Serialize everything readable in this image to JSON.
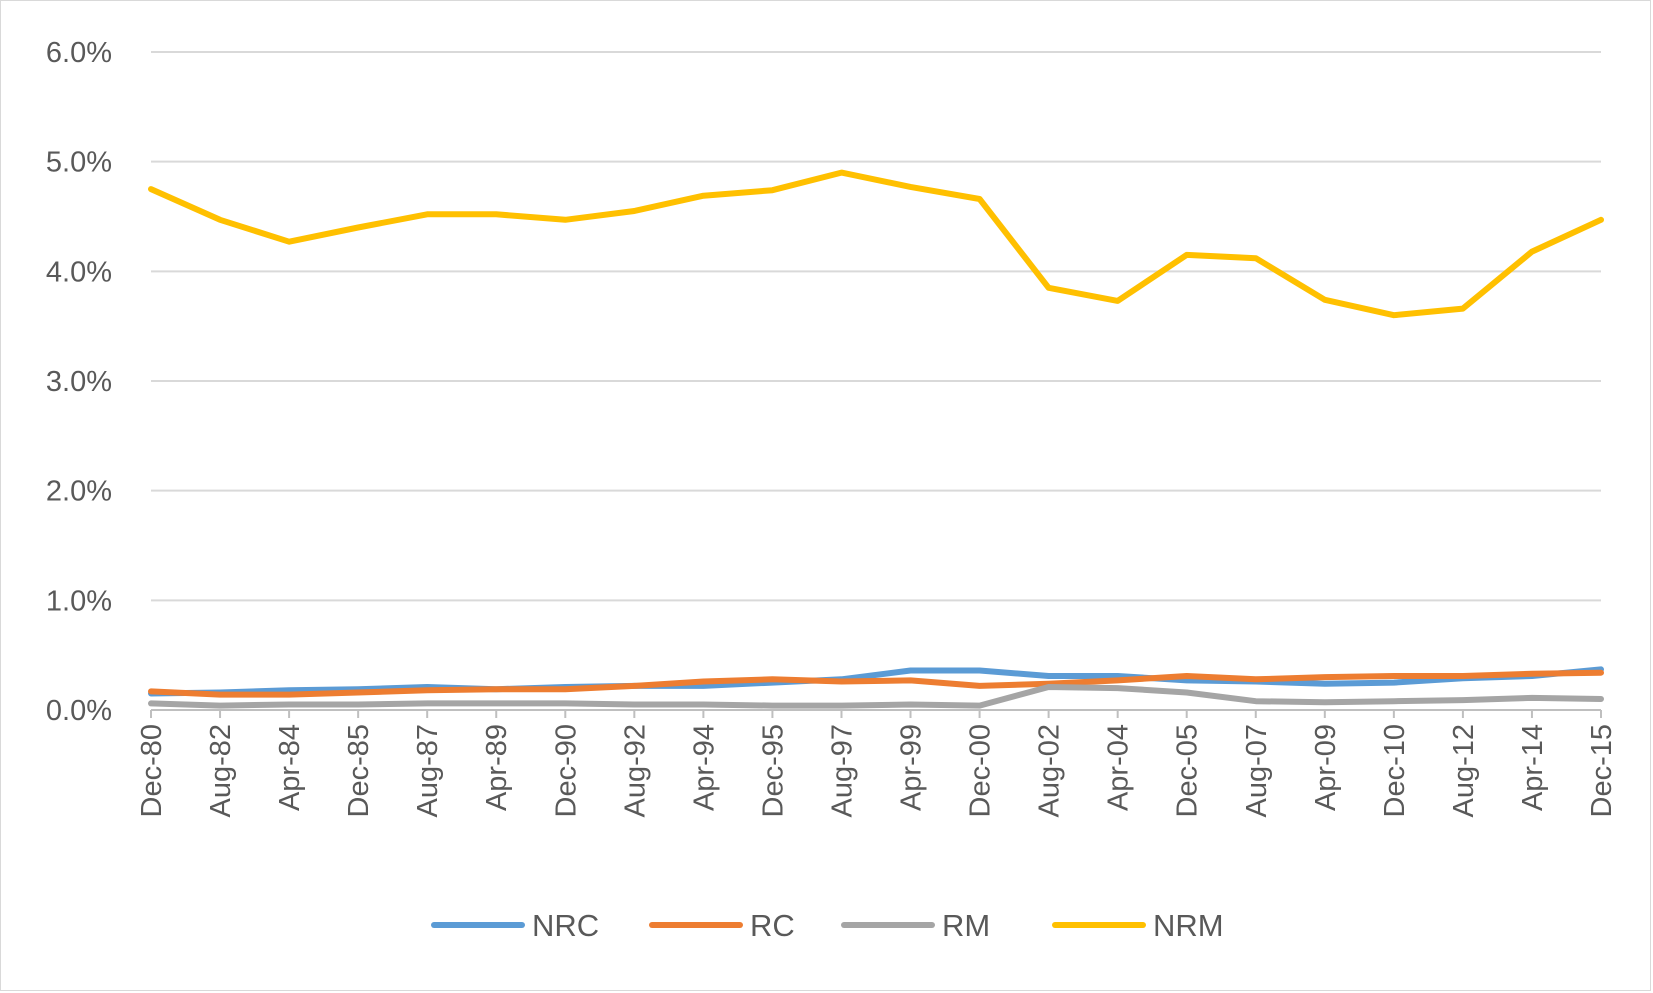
{
  "chart_data": {
    "type": "line",
    "title": "",
    "xlabel": "",
    "ylabel": "",
    "ylim": [
      0,
      0.06
    ],
    "yticks": [
      "0.0%",
      "1.0%",
      "2.0%",
      "3.0%",
      "4.0%",
      "5.0%",
      "6.0%"
    ],
    "xlim": [
      "1980-12",
      "2015-12"
    ],
    "xticks": [
      "Dec-80",
      "Aug-82",
      "Apr-84",
      "Dec-85",
      "Aug-87",
      "Apr-89",
      "Dec-90",
      "Aug-92",
      "Apr-94",
      "Dec-95",
      "Aug-97",
      "Apr-99",
      "Dec-00",
      "Aug-02",
      "Apr-04",
      "Dec-05",
      "Aug-07",
      "Apr-09",
      "Dec-10",
      "Aug-12",
      "Apr-14",
      "Dec-15"
    ],
    "grid": true,
    "legend": "bottom",
    "x": [
      "1980-12",
      "1982-08",
      "1984-04",
      "1985-12",
      "1987-08",
      "1989-04",
      "1990-12",
      "1992-08",
      "1994-04",
      "1995-12",
      "1997-08",
      "1999-04",
      "2000-12",
      "2002-08",
      "2004-04",
      "2005-12",
      "2007-08",
      "2009-04",
      "2010-12",
      "2012-08",
      "2014-04",
      "2015-12"
    ],
    "series": [
      {
        "name": "NRC",
        "color": "#5b9bd5",
        "values": [
          0.0015,
          0.0016,
          0.0018,
          0.0019,
          0.0021,
          0.0019,
          0.0021,
          0.0022,
          0.0022,
          0.0025,
          0.0028,
          0.0036,
          0.0036,
          0.0031,
          0.0031,
          0.0027,
          0.0026,
          0.0024,
          0.0025,
          0.0029,
          0.0031,
          0.0037
        ]
      },
      {
        "name": "RC",
        "color": "#ed7d31",
        "values": [
          0.0017,
          0.0014,
          0.0014,
          0.0016,
          0.0018,
          0.0019,
          0.0019,
          0.0022,
          0.0026,
          0.0028,
          0.0026,
          0.0027,
          0.0022,
          0.0024,
          0.0027,
          0.0031,
          0.0028,
          0.003,
          0.0031,
          0.0031,
          0.0033,
          0.0034
        ]
      },
      {
        "name": "RM",
        "color": "#a5a5a5",
        "values": [
          0.0006,
          0.0004,
          0.0005,
          0.0005,
          0.0006,
          0.0006,
          0.0006,
          0.0005,
          0.0005,
          0.0004,
          0.0004,
          0.0005,
          0.0004,
          0.0021,
          0.002,
          0.0016,
          0.0008,
          0.0007,
          0.0008,
          0.0009,
          0.0011,
          0.001
        ]
      },
      {
        "name": "NRM",
        "color": "#ffc000",
        "values": [
          0.0475,
          0.0447,
          0.0427,
          0.044,
          0.0452,
          0.0452,
          0.0447,
          0.0455,
          0.0469,
          0.0474,
          0.049,
          0.0477,
          0.0466,
          0.0385,
          0.0373,
          0.0415,
          0.0412,
          0.0374,
          0.036,
          0.0366,
          0.0418,
          0.0447
        ]
      }
    ]
  }
}
